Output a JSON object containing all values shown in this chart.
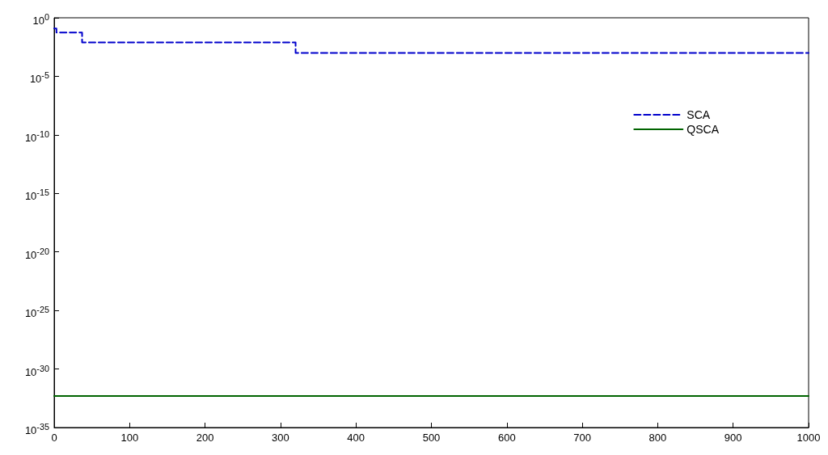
{
  "chart_data": {
    "type": "step",
    "xlim": [
      0,
      1000
    ],
    "xticks": [
      0,
      100,
      200,
      300,
      400,
      500,
      600,
      700,
      800,
      900,
      1000
    ],
    "ylim": [
      1e-35,
      1
    ],
    "log": true,
    "yticks": [
      {
        "value": 1e-35,
        "label": "10$^{-35}$"
      },
      {
        "value": 1e-30,
        "label": "10$^{-30}$"
      },
      {
        "value": 1e-25,
        "label": "10$^{-25}$"
      },
      {
        "value": 1e-20,
        "label": "10$^{-20}$"
      },
      {
        "value": 1e-15,
        "label": "10$^{-15}$"
      },
      {
        "value": 1e-10,
        "label": "10$^{-10}$"
      },
      {
        "value": 1e-05,
        "label": "10$^{-5}$"
      },
      {
        "value": 1,
        "label": "10$^{0}$"
      }
    ],
    "grid": false,
    "legend": "top right",
    "marker": "none",
    "series": [
      {
        "name": "SCA",
        "color": "#0000cc",
        "line_style": "dashed",
        "x": [
          0,
          3,
          37,
          320,
          1000
        ],
        "values": [
          0.12,
          0.056,
          0.008,
          0.001,
          0.001
        ]
      },
      {
        "name": "QSCA",
        "color": "#006400",
        "line_style": "solid",
        "x": [
          0,
          1000
        ],
        "values": [
          5e-33,
          5e-33
        ]
      }
    ]
  }
}
